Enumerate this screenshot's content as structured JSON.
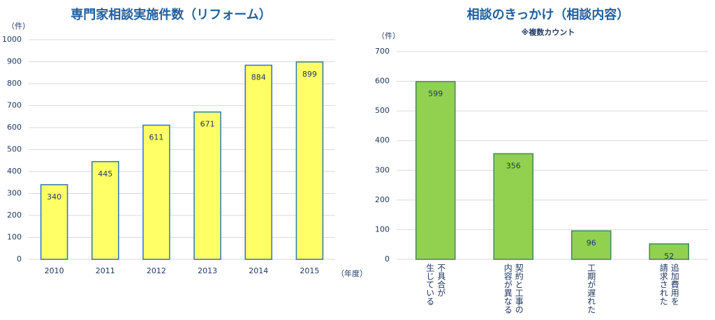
{
  "chart_data": [
    {
      "type": "bar",
      "title": "専門家相談実施件数（リフォーム）",
      "y_unit": "（件）",
      "x_label": "（年度）",
      "categories": [
        "2010",
        "2011",
        "2012",
        "2013",
        "2014",
        "2015"
      ],
      "values": [
        340,
        445,
        611,
        671,
        884,
        899
      ],
      "color": "#ffff66",
      "edge_color": "#2e75b6",
      "ylim": [
        0,
        1000
      ],
      "yticks": [
        0,
        100,
        200,
        300,
        400,
        500,
        600,
        700,
        800,
        900,
        1000
      ],
      "grid": true
    },
    {
      "type": "bar",
      "title": "相談のきっかけ（相談内容）",
      "subtitle": "※複数カウント",
      "y_unit": "（件）",
      "categories": [
        "不具合が\n生じている",
        "契約と工事の\n内容が異なる",
        "工期が遅れた",
        "追加費用を\n請求された"
      ],
      "values": [
        599,
        356,
        96,
        52
      ],
      "color": "#92d050",
      "edge_color": "#3d8a5e",
      "ylim": [
        0,
        700
      ],
      "yticks": [
        0,
        100,
        200,
        300,
        400,
        500,
        600,
        700
      ],
      "grid": true
    }
  ]
}
